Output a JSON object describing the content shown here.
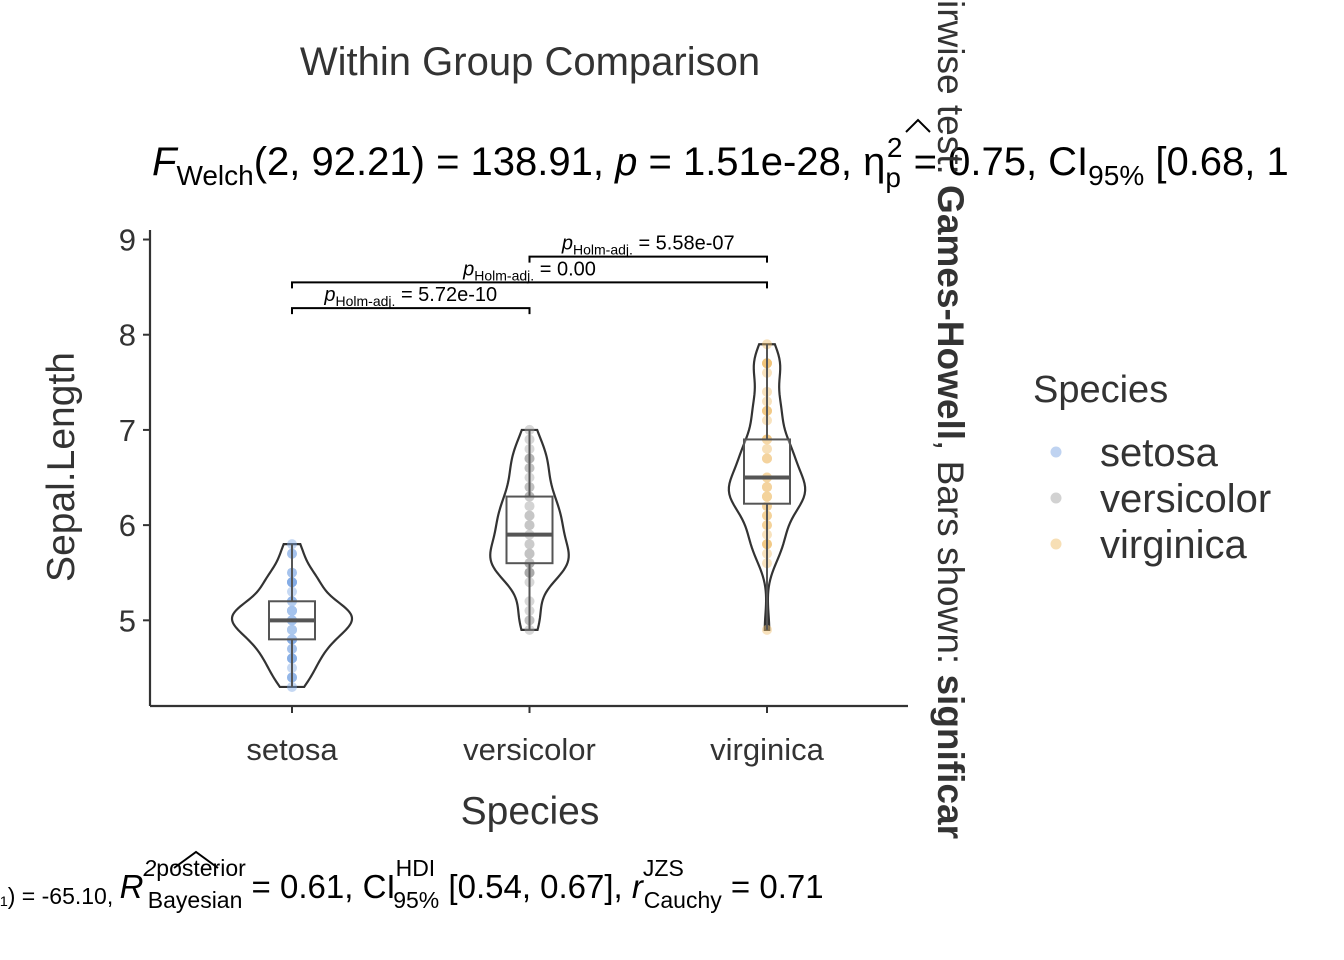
{
  "title": "Within Group Comparison",
  "subtitle": {
    "stat_symbol": "F",
    "stat_sub": "Welch",
    "df": "(2, 92.21)",
    "stat_value": " = 138.91, ",
    "p_symbol": "p",
    "p_value": " = 1.51e-28, ",
    "effect_symbol": "η",
    "effect_sub": "p",
    "effect_sup": "2",
    "effect_value": " = 0.75, CI",
    "ci_sub": "95%",
    "ci_value": " [0.68, 1"
  },
  "caption": {
    "lead": "₁) = -65.10, ",
    "r2_symbol": "R",
    "r2_sup2": "2",
    "r2_sup": "posterior",
    "r2_sub": "Bayesian",
    "r2_value": " = 0.61, CI",
    "hdi_sup": "HDI",
    "hdi_sub": "95%",
    "hdi_value": " [0.54, 0.67], ",
    "r_symbol": "r",
    "r_sup": "JZS",
    "r_sub": "Cauchy",
    "r_value": " = 0.71"
  },
  "side_caption": {
    "part1": "irwise test: ",
    "bold1": "Games-Howell",
    "part2": ", Bars shown: ",
    "bold2": "significar"
  },
  "colors": {
    "setosa": "#7fa8e4",
    "versicolor": "#a6a6a6",
    "virginica": "#f0bf6c",
    "violet_outline": "#333333",
    "box_outline": "#555555",
    "axis": "#333333"
  },
  "chart_data": {
    "type": "violin",
    "xlabel": "Species",
    "ylabel": "Sepal.Length",
    "categories": [
      "setosa",
      "versicolor",
      "virginica"
    ],
    "ylim": [
      4.1,
      9.1
    ],
    "yticks": [
      5,
      6,
      7,
      8,
      9
    ],
    "grid": false,
    "legend": {
      "title": "Species",
      "placement": "right",
      "entries": [
        "setosa",
        "versicolor",
        "virginica"
      ]
    },
    "box_stats": [
      {
        "name": "setosa",
        "min": 4.3,
        "q1": 4.8,
        "median": 5.0,
        "q3": 5.2,
        "max": 5.8
      },
      {
        "name": "versicolor",
        "min": 4.9,
        "q1": 5.6,
        "median": 5.9,
        "q3": 6.3,
        "max": 7.0
      },
      {
        "name": "virginica",
        "min": 4.9,
        "q1": 6.225,
        "median": 6.5,
        "q3": 6.9,
        "max": 7.9
      }
    ],
    "points": [
      {
        "name": "setosa",
        "values": [
          5.1,
          4.9,
          4.7,
          4.6,
          5.0,
          5.4,
          4.6,
          5.0,
          4.4,
          4.9,
          5.4,
          4.8,
          4.8,
          4.3,
          5.8,
          5.7,
          5.4,
          5.1,
          5.7,
          5.1,
          5.4,
          5.1,
          4.6,
          5.1,
          4.8,
          5.0,
          5.0,
          5.2,
          5.2,
          4.7,
          4.8,
          5.4,
          5.2,
          5.5,
          4.9,
          5.0,
          5.5,
          4.9,
          4.4,
          5.1,
          5.0,
          4.5,
          4.4,
          5.0,
          5.1,
          4.8,
          5.1,
          4.6,
          5.3,
          5.0
        ]
      },
      {
        "name": "versicolor",
        "values": [
          7.0,
          6.4,
          6.9,
          5.5,
          6.5,
          5.7,
          6.3,
          4.9,
          6.6,
          5.2,
          5.0,
          5.9,
          6.0,
          6.1,
          5.6,
          6.7,
          5.6,
          5.8,
          6.2,
          5.6,
          5.9,
          6.1,
          6.3,
          6.1,
          6.4,
          6.6,
          6.8,
          6.7,
          6.0,
          5.7,
          5.5,
          5.5,
          5.8,
          6.0,
          5.4,
          6.0,
          6.7,
          6.3,
          5.6,
          5.5,
          5.5,
          6.1,
          5.8,
          5.0,
          5.6,
          5.7,
          5.7,
          6.2,
          5.1,
          5.7
        ]
      },
      {
        "name": "virginica",
        "values": [
          6.3,
          5.8,
          7.1,
          6.3,
          6.5,
          7.6,
          4.9,
          7.3,
          6.7,
          7.2,
          6.5,
          6.4,
          6.8,
          5.7,
          5.8,
          6.4,
          6.5,
          7.7,
          7.7,
          6.0,
          6.9,
          5.6,
          7.7,
          6.3,
          6.7,
          7.2,
          6.2,
          6.1,
          6.4,
          7.2,
          7.4,
          7.9,
          6.4,
          6.3,
          6.1,
          7.7,
          6.3,
          6.4,
          6.0,
          6.9,
          6.7,
          6.9,
          5.8,
          6.8,
          6.7,
          6.7,
          6.3,
          6.5,
          6.2,
          5.9
        ]
      }
    ],
    "comparisons": [
      {
        "group1": "setosa",
        "group2": "versicolor",
        "label_symbol": "p",
        "label_sub": "Holm-adj.",
        "label_value": " = 5.72e-10",
        "y": 8.28
      },
      {
        "group1": "setosa",
        "group2": "virginica",
        "label_symbol": "p",
        "label_sub": "Holm-adj.",
        "label_value": " = 0.00",
        "y": 8.55
      },
      {
        "group1": "versicolor",
        "group2": "virginica",
        "label_symbol": "p",
        "label_sub": "Holm-adj.",
        "label_value": " = 5.58e-07",
        "y": 8.82
      }
    ]
  }
}
